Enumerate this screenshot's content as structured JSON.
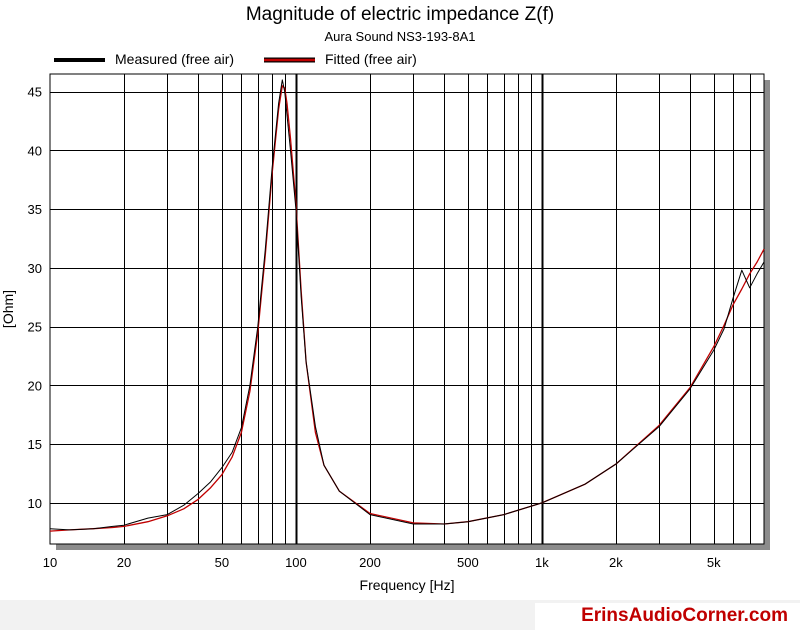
{
  "chart_data": {
    "type": "line",
    "title": "Magnitude of electric impedance Z(f)",
    "subtitle": "Aura Sound NS3-193-8A1",
    "xlabel": "Frequency [Hz]",
    "ylabel": "[Ohm]",
    "x_scale": "log",
    "xlim": [
      10,
      8000
    ],
    "ylim": [
      6.5,
      46.5
    ],
    "x_ticks": [
      10,
      20,
      50,
      100,
      200,
      500,
      1000,
      2000,
      5000
    ],
    "x_tick_labels": [
      "10",
      "20",
      "50",
      "100",
      "200",
      "500",
      "1k",
      "2k",
      "5k"
    ],
    "y_ticks": [
      10,
      15,
      20,
      25,
      30,
      35,
      40,
      45
    ],
    "y_tick_labels": [
      "10",
      "15",
      "20",
      "25",
      "30",
      "35",
      "40",
      "45"
    ],
    "grid": true,
    "legend_position": "top-left",
    "series": [
      {
        "name": "Measured (free air)",
        "color": "#000000",
        "x": [
          10,
          12,
          15,
          18,
          20,
          25,
          30,
          35,
          40,
          45,
          50,
          55,
          60,
          65,
          70,
          75,
          80,
          85,
          88,
          90,
          92,
          95,
          100,
          105,
          110,
          120,
          130,
          150,
          200,
          300,
          400,
          500,
          700,
          1000,
          1500,
          2000,
          3000,
          4000,
          5000,
          5500,
          6000,
          6500,
          7000,
          7500,
          8000
        ],
        "y": [
          7.8,
          7.7,
          7.8,
          8.0,
          8.1,
          8.7,
          9.0,
          9.8,
          10.8,
          11.8,
          13.0,
          14.3,
          16.4,
          20.0,
          25.0,
          31.5,
          38.5,
          44.0,
          46.0,
          45.0,
          43.0,
          40.0,
          35.0,
          27.5,
          22.0,
          16.5,
          13.2,
          11.0,
          9.0,
          8.2,
          8.2,
          8.4,
          9.0,
          10.0,
          11.6,
          13.3,
          16.5,
          19.7,
          23.0,
          24.8,
          27.5,
          29.8,
          28.3,
          29.5,
          30.5
        ]
      },
      {
        "name": "Fitted (free air)",
        "color": "#c00000",
        "x": [
          10,
          12,
          15,
          18,
          20,
          25,
          30,
          35,
          40,
          45,
          50,
          55,
          60,
          65,
          70,
          75,
          80,
          85,
          88,
          90,
          92,
          95,
          100,
          105,
          110,
          120,
          130,
          150,
          200,
          300,
          400,
          500,
          700,
          1000,
          1500,
          2000,
          3000,
          4000,
          5000,
          5500,
          6000,
          6500,
          7000,
          7500,
          8000
        ],
        "y": [
          7.6,
          7.7,
          7.8,
          7.9,
          8.0,
          8.4,
          8.9,
          9.5,
          10.3,
          11.3,
          12.4,
          13.9,
          16.0,
          19.5,
          24.5,
          31.0,
          38.0,
          43.5,
          45.5,
          45.3,
          44.0,
          41.0,
          35.5,
          28.0,
          22.0,
          16.0,
          13.2,
          11.0,
          9.1,
          8.3,
          8.2,
          8.4,
          9.0,
          10.0,
          11.6,
          13.3,
          16.6,
          19.8,
          23.3,
          25.1,
          26.9,
          28.2,
          29.5,
          30.5,
          31.6
        ]
      }
    ]
  },
  "footer": {
    "watermark": "ErinsAudioCorner.com"
  }
}
